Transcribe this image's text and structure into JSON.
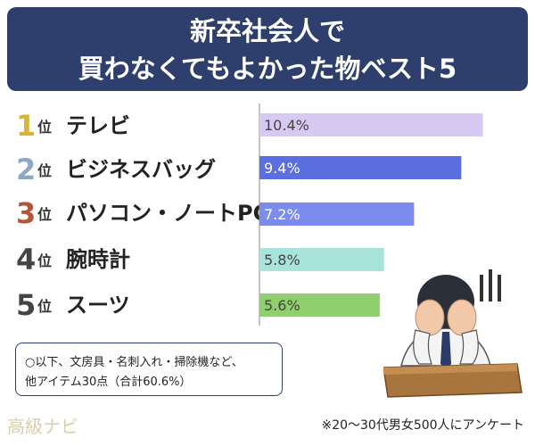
{
  "header": {
    "title_line1": "新卒社会人で",
    "title_line2": "買わなくてもよかった物ベスト5"
  },
  "ranking": [
    {
      "num": "1",
      "suffix": "位",
      "label": "テレビ",
      "num_color": "#d9b43a"
    },
    {
      "num": "2",
      "suffix": "位",
      "label": "ビジネスバッグ",
      "num_color": "#8fa7c4"
    },
    {
      "num": "3",
      "suffix": "位",
      "label": "パソコン・ノートPC",
      "num_color": "#b5563a"
    },
    {
      "num": "4",
      "suffix": "位",
      "label": "腕時計",
      "num_color": "#444444"
    },
    {
      "num": "5",
      "suffix": "位",
      "label": "スーツ",
      "num_color": "#444444"
    }
  ],
  "chart_data": {
    "type": "bar",
    "orientation": "horizontal",
    "categories": [
      "テレビ",
      "ビジネスバッグ",
      "パソコン・ノートPC",
      "腕時計",
      "スーツ"
    ],
    "values": [
      10.4,
      9.4,
      7.2,
      5.8,
      5.6
    ],
    "value_labels": [
      "10.4%",
      "9.4%",
      "7.2%",
      "5.8%",
      "5.6%"
    ],
    "unit": "%",
    "bar_colors": [
      "#d6c9f2",
      "#5a6ee0",
      "#7b8cec",
      "#a8e3dc",
      "#8fcf6e"
    ],
    "label_colors": [
      "#444444",
      "#ffffff",
      "#ffffff",
      "#444444",
      "#444444"
    ],
    "xlim": [
      0,
      12
    ],
    "grid": false
  },
  "note": {
    "line1": "○以下、文房具・名刺入れ・掃除機など、",
    "line2": "他アイテム30点（合計60.6%）"
  },
  "logo": "高級ナビ",
  "footnote": "※20〜30代男女500人にアンケート"
}
